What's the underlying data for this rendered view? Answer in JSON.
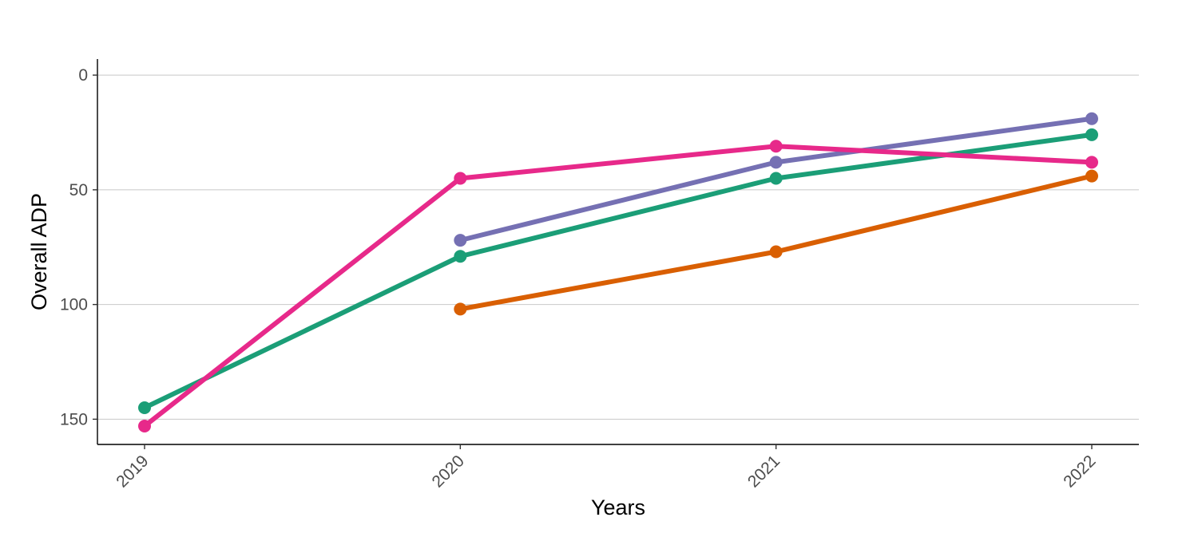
{
  "chart_data": {
    "type": "line",
    "title": "",
    "xlabel": "Years",
    "ylabel": "Overall ADP",
    "x": [
      "2019",
      "2020",
      "2021",
      "2022"
    ],
    "y_reversed": true,
    "ylim": [
      -7,
      161
    ],
    "yticks": [
      0,
      50,
      100,
      150
    ],
    "grid": "horizontal-major",
    "legend": "none",
    "x_tick_rotation": -45,
    "series": [
      {
        "color": "#1B9E77",
        "values": [
          145,
          79,
          45,
          26
        ]
      },
      {
        "color": "#D95F02",
        "values": [
          null,
          102,
          77,
          44
        ]
      },
      {
        "color": "#7570B3",
        "values": [
          null,
          72,
          38,
          19
        ]
      },
      {
        "color": "#E7298A",
        "values": [
          153,
          45,
          31,
          38
        ]
      }
    ]
  }
}
